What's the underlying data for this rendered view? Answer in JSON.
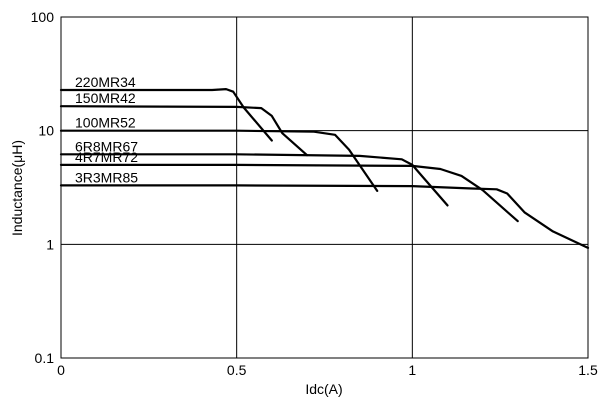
{
  "chart_data": {
    "type": "line",
    "xlabel": "Idc(A)",
    "ylabel": "Inductance(μH)",
    "xlim": [
      0,
      1.5
    ],
    "ylim": [
      0.1,
      100
    ],
    "y_scale": "log",
    "grid": true,
    "x_ticks": [
      {
        "value": 0,
        "label": "0"
      },
      {
        "value": 0.5,
        "label": "0.5"
      },
      {
        "value": 1,
        "label": "1"
      },
      {
        "value": 1.5,
        "label": "1.5"
      }
    ],
    "y_ticks": [
      {
        "value": 0.1,
        "label": "0.1"
      },
      {
        "value": 1,
        "label": "1"
      },
      {
        "value": 10,
        "label": "10"
      },
      {
        "value": 100,
        "label": "100"
      }
    ],
    "series": [
      {
        "name": "220MR34",
        "x": [
          0,
          0.43,
          0.47,
          0.49,
          0.52,
          0.6
        ],
        "y": [
          22.8,
          22.8,
          23.2,
          22.0,
          16.0,
          8.2
        ]
      },
      {
        "name": "150MR42",
        "x": [
          0,
          0.5,
          0.57,
          0.6,
          0.63,
          0.7
        ],
        "y": [
          16.4,
          16.2,
          15.8,
          13.5,
          9.5,
          6.1
        ]
      },
      {
        "name": "100MR52",
        "x": [
          0,
          0.5,
          0.72,
          0.78,
          0.82,
          0.9
        ],
        "y": [
          10.0,
          10.0,
          9.8,
          9.2,
          6.8,
          2.95
        ]
      },
      {
        "name": "6R8MR67",
        "x": [
          0,
          0.5,
          0.85,
          0.97,
          1.0,
          1.03,
          1.1
        ],
        "y": [
          6.2,
          6.2,
          6.0,
          5.6,
          5.0,
          3.9,
          2.2
        ]
      },
      {
        "name": "4R7MR72",
        "x": [
          0,
          0.5,
          1.0,
          1.08,
          1.14,
          1.2,
          1.3
        ],
        "y": [
          5.0,
          5.0,
          4.9,
          4.6,
          4.0,
          3.0,
          1.6
        ]
      },
      {
        "name": "3R3MR85",
        "x": [
          0,
          0.5,
          1.0,
          1.17,
          1.24,
          1.27,
          1.32,
          1.4,
          1.5
        ],
        "y": [
          3.3,
          3.3,
          3.25,
          3.1,
          3.05,
          2.8,
          1.9,
          1.3,
          0.93
        ]
      }
    ]
  }
}
